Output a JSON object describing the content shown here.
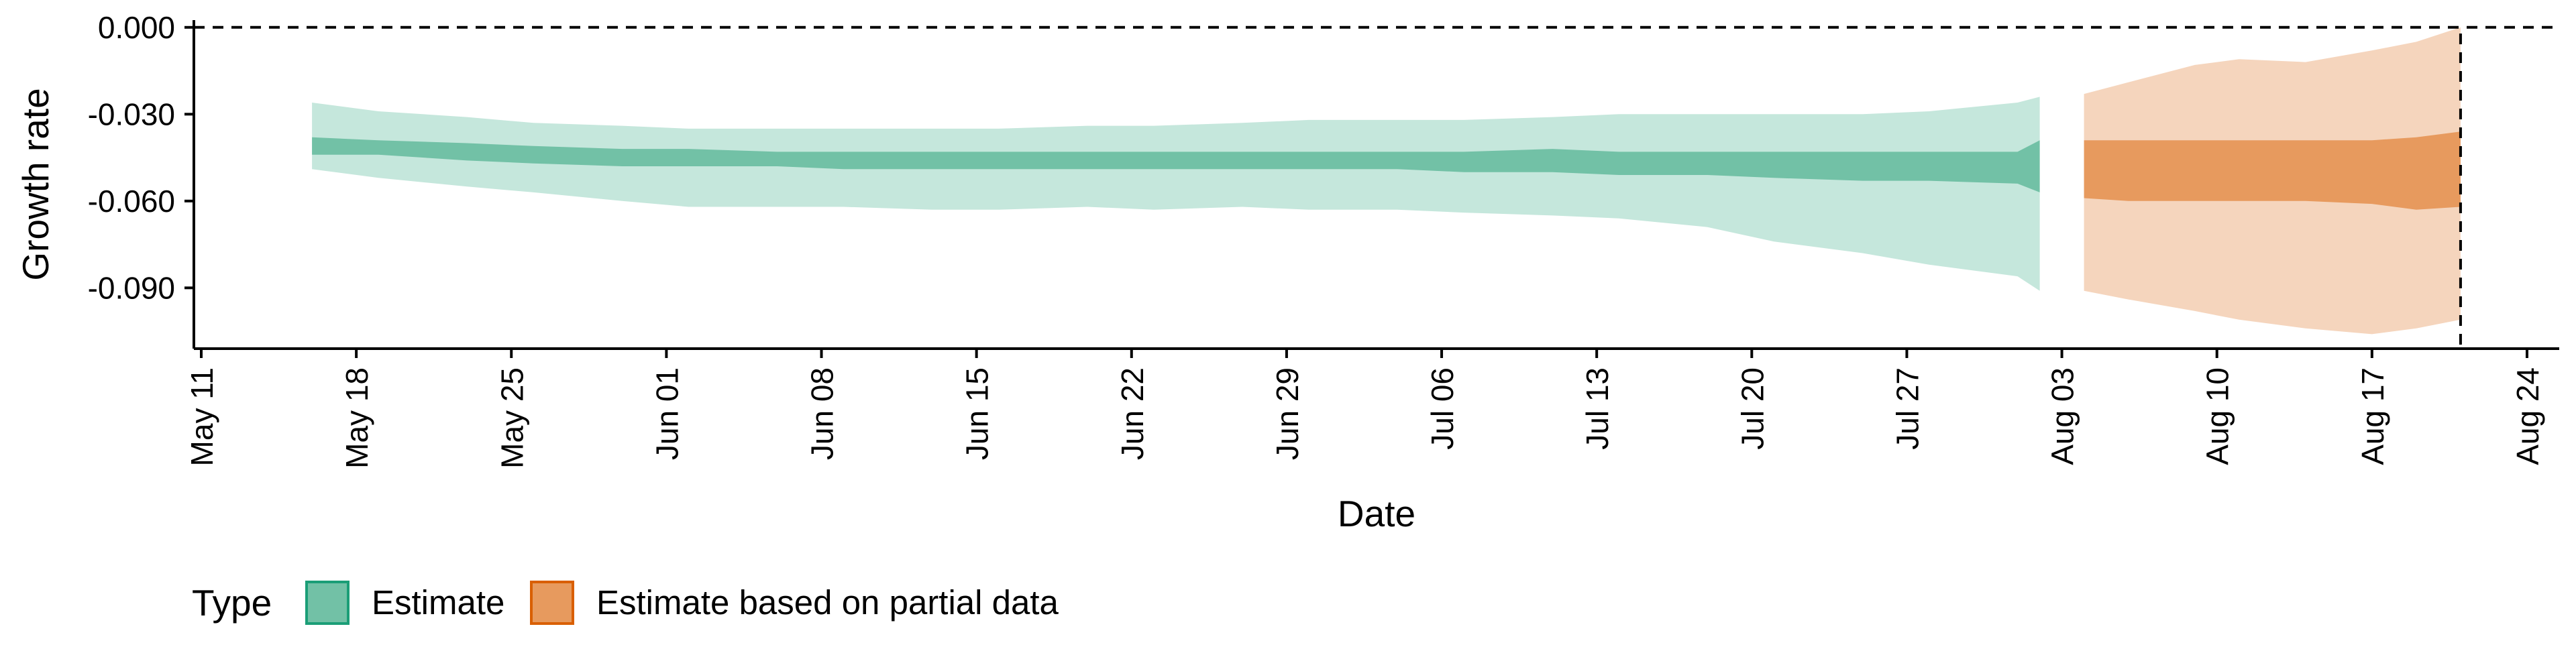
{
  "chart_data": {
    "type": "area",
    "xlabel": "Date",
    "ylabel": "Growth rate",
    "x_ticks": [
      "May 11",
      "May 18",
      "May 25",
      "Jun 01",
      "Jun 08",
      "Jun 15",
      "Jun 22",
      "Jun 29",
      "Jul 06",
      "Jul 13",
      "Jul 20",
      "Jul 27",
      "Aug 03",
      "Aug 10",
      "Aug 17",
      "Aug 24"
    ],
    "y_ticks": [
      "0.000",
      "-0.030",
      "-0.060",
      "-0.090"
    ],
    "y_tick_values": [
      0.0,
      -0.03,
      -0.06,
      -0.09
    ],
    "ylim": [
      -0.111,
      0.0025
    ],
    "xlim": [
      "2020-05-10",
      "2020-08-24"
    ],
    "reference_lines": [
      {
        "axis": "y",
        "value": 0.0,
        "style": "dashed"
      },
      {
        "axis": "x",
        "value": "2020-08-20",
        "style": "dashed"
      }
    ],
    "legend": {
      "title": "Type",
      "position": "bottom-left",
      "entries": [
        {
          "label": "Estimate",
          "fill": "#72c1a6",
          "stroke": "#1b9e77"
        },
        {
          "label": "Estimate based on partial data",
          "fill": "#e79a5e",
          "stroke": "#d95f02"
        }
      ]
    },
    "series": [
      {
        "name": "Estimate",
        "colors": {
          "outer": "#c5e7dc",
          "inner": "#72c1a6"
        },
        "points": [
          {
            "date": "2020-05-15",
            "lo90": -0.049,
            "lo50": -0.044,
            "hi50": -0.038,
            "hi90": -0.026
          },
          {
            "date": "2020-05-18",
            "lo90": -0.052,
            "lo50": -0.044,
            "hi50": -0.039,
            "hi90": -0.029
          },
          {
            "date": "2020-05-22",
            "lo90": -0.055,
            "lo50": -0.046,
            "hi50": -0.04,
            "hi90": -0.031
          },
          {
            "date": "2020-05-25",
            "lo90": -0.057,
            "lo50": -0.047,
            "hi50": -0.041,
            "hi90": -0.033
          },
          {
            "date": "2020-05-29",
            "lo90": -0.06,
            "lo50": -0.048,
            "hi50": -0.042,
            "hi90": -0.034
          },
          {
            "date": "2020-06-01",
            "lo90": -0.062,
            "lo50": -0.048,
            "hi50": -0.042,
            "hi90": -0.035
          },
          {
            "date": "2020-06-05",
            "lo90": -0.062,
            "lo50": -0.048,
            "hi50": -0.043,
            "hi90": -0.035
          },
          {
            "date": "2020-06-08",
            "lo90": -0.062,
            "lo50": -0.049,
            "hi50": -0.043,
            "hi90": -0.035
          },
          {
            "date": "2020-06-12",
            "lo90": -0.063,
            "lo50": -0.049,
            "hi50": -0.043,
            "hi90": -0.035
          },
          {
            "date": "2020-06-15",
            "lo90": -0.063,
            "lo50": -0.049,
            "hi50": -0.043,
            "hi90": -0.035
          },
          {
            "date": "2020-06-19",
            "lo90": -0.062,
            "lo50": -0.049,
            "hi50": -0.043,
            "hi90": -0.034
          },
          {
            "date": "2020-06-22",
            "lo90": -0.063,
            "lo50": -0.049,
            "hi50": -0.043,
            "hi90": -0.034
          },
          {
            "date": "2020-06-26",
            "lo90": -0.062,
            "lo50": -0.049,
            "hi50": -0.043,
            "hi90": -0.033
          },
          {
            "date": "2020-06-29",
            "lo90": -0.063,
            "lo50": -0.049,
            "hi50": -0.043,
            "hi90": -0.032
          },
          {
            "date": "2020-07-03",
            "lo90": -0.063,
            "lo50": -0.049,
            "hi50": -0.043,
            "hi90": -0.032
          },
          {
            "date": "2020-07-06",
            "lo90": -0.064,
            "lo50": -0.05,
            "hi50": -0.043,
            "hi90": -0.032
          },
          {
            "date": "2020-07-10",
            "lo90": -0.065,
            "lo50": -0.05,
            "hi50": -0.042,
            "hi90": -0.031
          },
          {
            "date": "2020-07-13",
            "lo90": -0.066,
            "lo50": -0.051,
            "hi50": -0.043,
            "hi90": -0.03
          },
          {
            "date": "2020-07-17",
            "lo90": -0.069,
            "lo50": -0.051,
            "hi50": -0.043,
            "hi90": -0.03
          },
          {
            "date": "2020-07-20",
            "lo90": -0.074,
            "lo50": -0.052,
            "hi50": -0.043,
            "hi90": -0.03
          },
          {
            "date": "2020-07-24",
            "lo90": -0.078,
            "lo50": -0.053,
            "hi50": -0.043,
            "hi90": -0.03
          },
          {
            "date": "2020-07-27",
            "lo90": -0.082,
            "lo50": -0.053,
            "hi50": -0.043,
            "hi90": -0.029
          },
          {
            "date": "2020-07-31",
            "lo90": -0.086,
            "lo50": -0.054,
            "hi50": -0.043,
            "hi90": -0.026
          },
          {
            "date": "2020-08-01",
            "lo90": -0.091,
            "lo50": -0.057,
            "hi50": -0.039,
            "hi90": -0.024
          }
        ]
      },
      {
        "name": "Estimate based on partial data",
        "colors": {
          "outer": "#f5d5bd",
          "inner": "#e79a5e"
        },
        "points": [
          {
            "date": "2020-08-03",
            "lo90": -0.091,
            "lo50": -0.059,
            "hi50": -0.039,
            "hi90": -0.023
          },
          {
            "date": "2020-08-05",
            "lo90": -0.094,
            "lo50": -0.06,
            "hi50": -0.039,
            "hi90": -0.019
          },
          {
            "date": "2020-08-08",
            "lo90": -0.098,
            "lo50": -0.06,
            "hi50": -0.039,
            "hi90": -0.013
          },
          {
            "date": "2020-08-10",
            "lo90": -0.101,
            "lo50": -0.06,
            "hi50": -0.039,
            "hi90": -0.011
          },
          {
            "date": "2020-08-13",
            "lo90": -0.104,
            "lo50": -0.06,
            "hi50": -0.039,
            "hi90": -0.012
          },
          {
            "date": "2020-08-16",
            "lo90": -0.106,
            "lo50": -0.061,
            "hi50": -0.039,
            "hi90": -0.008
          },
          {
            "date": "2020-08-18",
            "lo90": -0.104,
            "lo50": -0.063,
            "hi50": -0.038,
            "hi90": -0.005
          },
          {
            "date": "2020-08-20",
            "lo90": -0.101,
            "lo50": -0.062,
            "hi50": -0.036,
            "hi90": 0.0
          }
        ]
      }
    ]
  }
}
